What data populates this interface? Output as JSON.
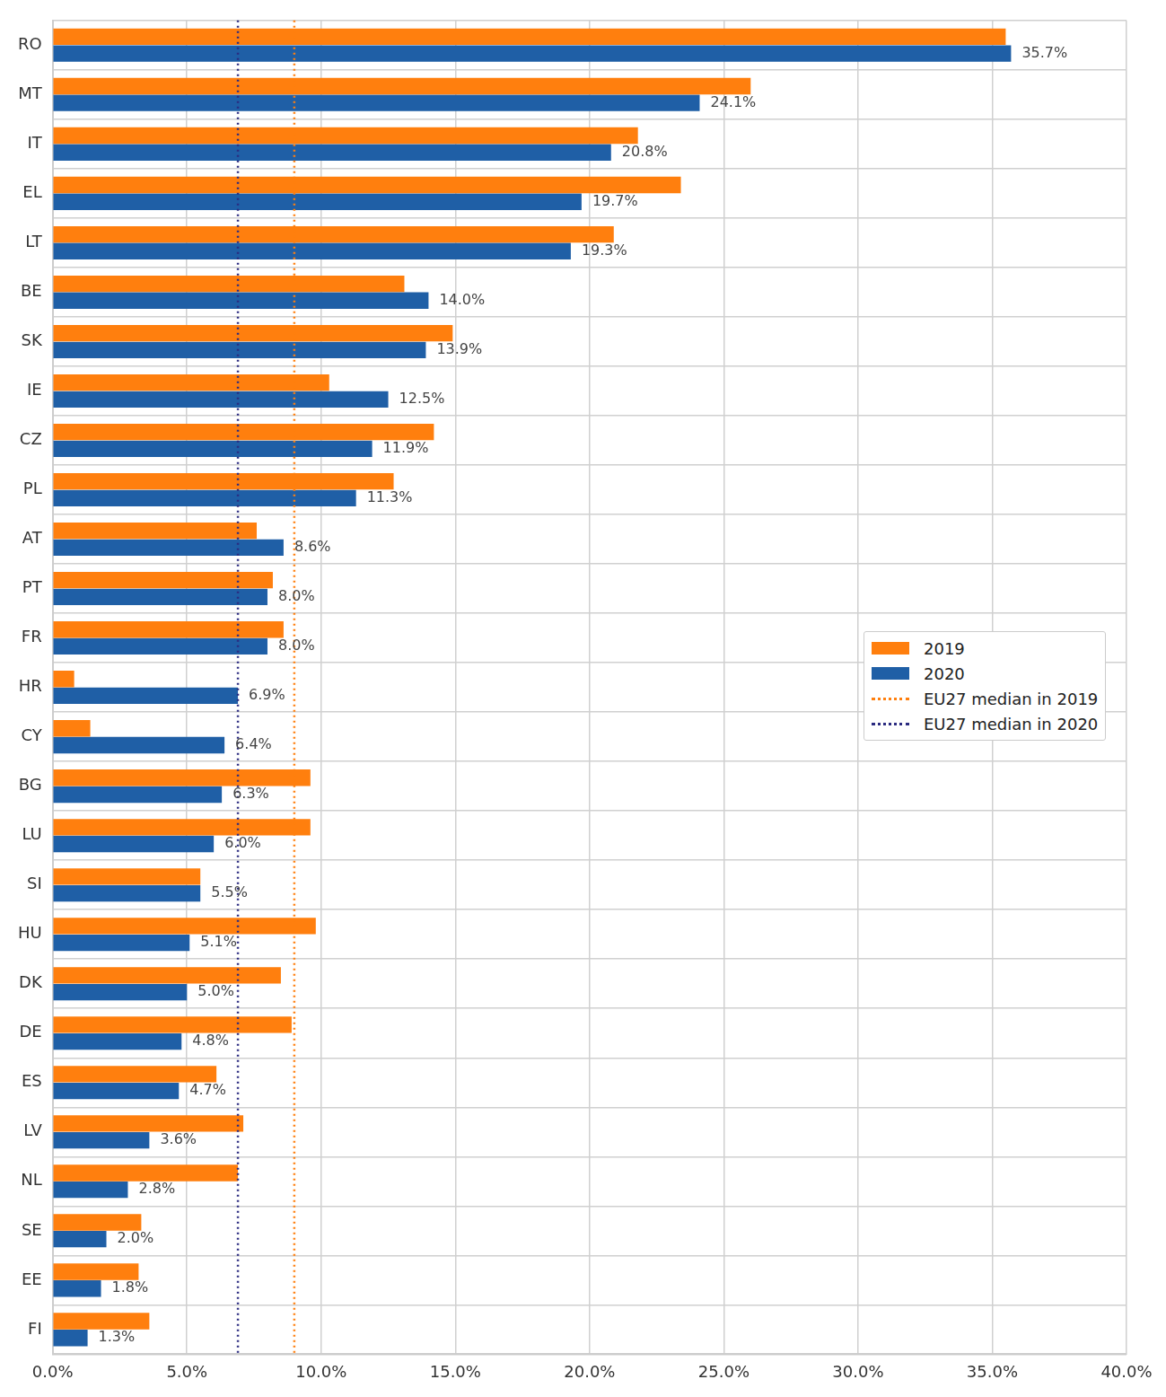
{
  "chart_data": {
    "type": "bar",
    "orientation": "horizontal",
    "categories": [
      "RO",
      "MT",
      "IT",
      "EL",
      "LT",
      "BE",
      "SK",
      "IE",
      "CZ",
      "PL",
      "AT",
      "PT",
      "FR",
      "HR",
      "CY",
      "BG",
      "LU",
      "SI",
      "HU",
      "DK",
      "DE",
      "ES",
      "LV",
      "NL",
      "SE",
      "EE",
      "FI"
    ],
    "series": [
      {
        "name": "2019",
        "color": "#ff7f0e",
        "values": [
          35.5,
          26.0,
          21.8,
          23.4,
          20.9,
          13.1,
          14.9,
          10.3,
          14.2,
          12.7,
          7.6,
          8.2,
          8.6,
          0.8,
          1.4,
          9.6,
          9.6,
          5.5,
          9.8,
          8.5,
          8.9,
          6.1,
          7.1,
          6.9,
          3.3,
          3.2,
          3.6
        ]
      },
      {
        "name": "2020",
        "color": "#1f5fa6",
        "values": [
          35.7,
          24.1,
          20.8,
          19.7,
          19.3,
          14.0,
          13.9,
          12.5,
          11.9,
          11.3,
          8.6,
          8.0,
          8.0,
          6.9,
          6.4,
          6.3,
          6.0,
          5.5,
          5.1,
          5.0,
          4.8,
          4.7,
          3.6,
          2.8,
          2.0,
          1.8,
          1.3
        ],
        "value_labels": [
          "35.7%",
          "24.1%",
          "20.8%",
          "19.7%",
          "19.3%",
          "14.0%",
          "13.9%",
          "12.5%",
          "11.9%",
          "11.3%",
          "8.6%",
          "8.0%",
          "8.0%",
          "6.9%",
          "6.4%",
          "6.3%",
          "6.0%",
          "5.5%",
          "5.1%",
          "5.0%",
          "4.8%",
          "4.7%",
          "3.6%",
          "2.8%",
          "2.0%",
          "1.8%",
          "1.3%"
        ]
      }
    ],
    "reference_lines": [
      {
        "name": "EU27 median in 2019",
        "value": 9.0,
        "color": "#ff7f0e",
        "line_style": "dotted"
      },
      {
        "name": "EU27 median in 2020",
        "value": 6.9,
        "color": "#2b2b80",
        "line_style": "dotted"
      }
    ],
    "xlim": [
      0,
      40
    ],
    "xticks": [
      {
        "value": 0,
        "label": "0.0%"
      },
      {
        "value": 5,
        "label": "5.0%"
      },
      {
        "value": 10,
        "label": "10.0%"
      },
      {
        "value": 15,
        "label": "15.0%"
      },
      {
        "value": 20,
        "label": "20.0%"
      },
      {
        "value": 25,
        "label": "25.0%"
      },
      {
        "value": 30,
        "label": "30.0%"
      },
      {
        "value": 35,
        "label": "35.0%"
      },
      {
        "value": 40,
        "label": "40.0%"
      }
    ],
    "grid": true,
    "legend": "right",
    "data_labels": true
  }
}
